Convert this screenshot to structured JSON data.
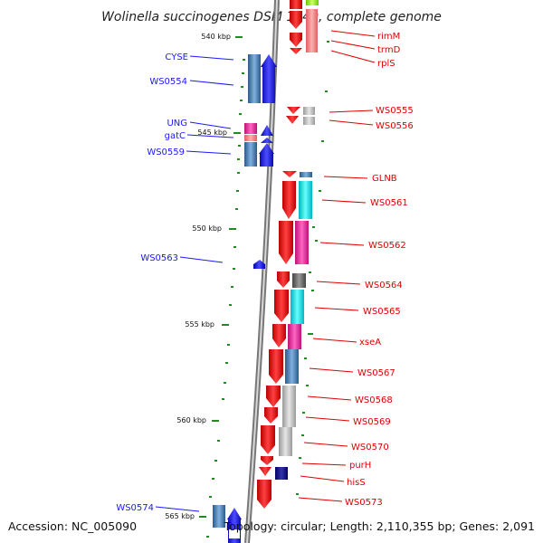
{
  "title": "Wolinella succinogenes DSM 1740, complete genome",
  "footer": {
    "accession": "Accession: NC_005090",
    "summary": "Topology: circular; Length: 2,110,355 bp; Genes: 2,091"
  },
  "scale_labels": [
    "540 kbp",
    "545 kbp",
    "550 kbp",
    "555 kbp",
    "560 kbp",
    "565 kbp"
  ],
  "left_genes": [
    "CYSE",
    "WS0554",
    "UNG",
    "gatC",
    "WS0559",
    "WS0563",
    "WS0574"
  ],
  "right_genes": [
    "rimM",
    "trmD",
    "rplS",
    "WS0555",
    "WS0556",
    "GLNB",
    "WS0561",
    "WS0562",
    "WS0564",
    "WS0565",
    "xseA",
    "WS0567",
    "WS0568",
    "WS0569",
    "WS0570",
    "purH",
    "hisS",
    "WS0573"
  ],
  "colors": {
    "forward_strand": "#0000ee",
    "reverse_strand": "#ee0000",
    "tick": "#228b22",
    "backbone": "#888888"
  }
}
